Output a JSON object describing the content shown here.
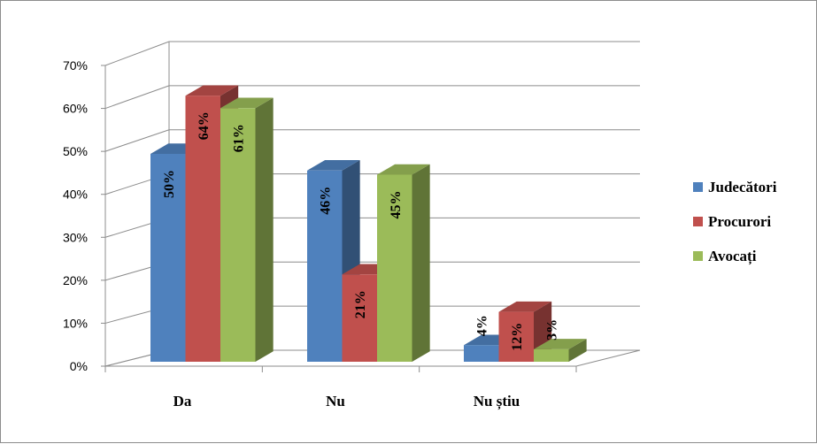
{
  "chart_data": {
    "type": "bar",
    "categories": [
      "Da",
      "Nu",
      "Nu știu"
    ],
    "series": [
      {
        "name": "Judecători",
        "values": [
          50,
          46,
          4
        ],
        "labels": [
          "50%",
          "46%",
          "4%"
        ],
        "color": "#4F81BD"
      },
      {
        "name": "Procurori",
        "values": [
          64,
          21,
          12
        ],
        "labels": [
          "64%",
          "21%",
          "12%"
        ],
        "color": "#C0504D"
      },
      {
        "name": "Avocați",
        "values": [
          61,
          45,
          3
        ],
        "labels": [
          "61%",
          "45%",
          "3%"
        ],
        "color": "#9BBB59"
      }
    ],
    "yticks": [
      "0%",
      "10%",
      "20%",
      "30%",
      "40%",
      "50%",
      "60%",
      "70%"
    ],
    "ylim": [
      0,
      70
    ],
    "grid": true,
    "legend": "right",
    "style": "3d-clustered-column"
  }
}
